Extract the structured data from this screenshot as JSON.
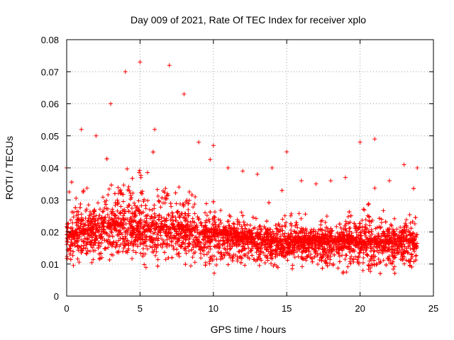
{
  "chart_data": {
    "type": "scatter",
    "title": "Day 009 of 2021, Rate Of TEC Index for receiver xplo",
    "xlabel": "GPS time / hours",
    "ylabel": "ROTI / TECUs",
    "xlim": [
      0,
      25
    ],
    "ylim": [
      0,
      0.08
    ],
    "x_ticks": [
      0,
      5,
      10,
      15,
      20,
      25
    ],
    "x_tick_labels": [
      "0",
      "5",
      "10",
      "15",
      "20",
      "25"
    ],
    "y_ticks": [
      0,
      0.01,
      0.02,
      0.03,
      0.04,
      0.05,
      0.06,
      0.07,
      0.08
    ],
    "y_tick_labels": [
      "0",
      "0.01",
      "0.02",
      "0.03",
      "0.04",
      "0.05",
      "0.06",
      "0.07",
      "0.08"
    ],
    "grid": true,
    "marker": "plus",
    "marker_color": "#ff0000",
    "x_data_range": [
      0,
      23.9
    ],
    "envelope": {
      "x": [
        0,
        1,
        2,
        3,
        4,
        5,
        6,
        7,
        8,
        9,
        10,
        11,
        12,
        13,
        14,
        15,
        16,
        17,
        18,
        19,
        20,
        21,
        22,
        23,
        23.9
      ],
      "median": [
        0.018,
        0.02,
        0.021,
        0.022,
        0.023,
        0.02,
        0.021,
        0.022,
        0.021,
        0.02,
        0.02,
        0.019,
        0.018,
        0.018,
        0.017,
        0.017,
        0.017,
        0.017,
        0.017,
        0.017,
        0.017,
        0.017,
        0.017,
        0.017,
        0.017
      ],
      "upper": [
        0.04,
        0.052,
        0.05,
        0.06,
        0.07,
        0.073,
        0.052,
        0.072,
        0.063,
        0.048,
        0.047,
        0.04,
        0.039,
        0.038,
        0.04,
        0.045,
        0.036,
        0.035,
        0.036,
        0.037,
        0.048,
        0.049,
        0.036,
        0.041,
        0.04
      ],
      "lower": [
        0.008,
        0.007,
        0.007,
        0.008,
        0.008,
        0.007,
        0.006,
        0.006,
        0.007,
        0.006,
        0.005,
        0.006,
        0.006,
        0.006,
        0.006,
        0.006,
        0.006,
        0.006,
        0.005,
        0.005,
        0.005,
        0.005,
        0.005,
        0.006,
        0.006
      ]
    }
  }
}
